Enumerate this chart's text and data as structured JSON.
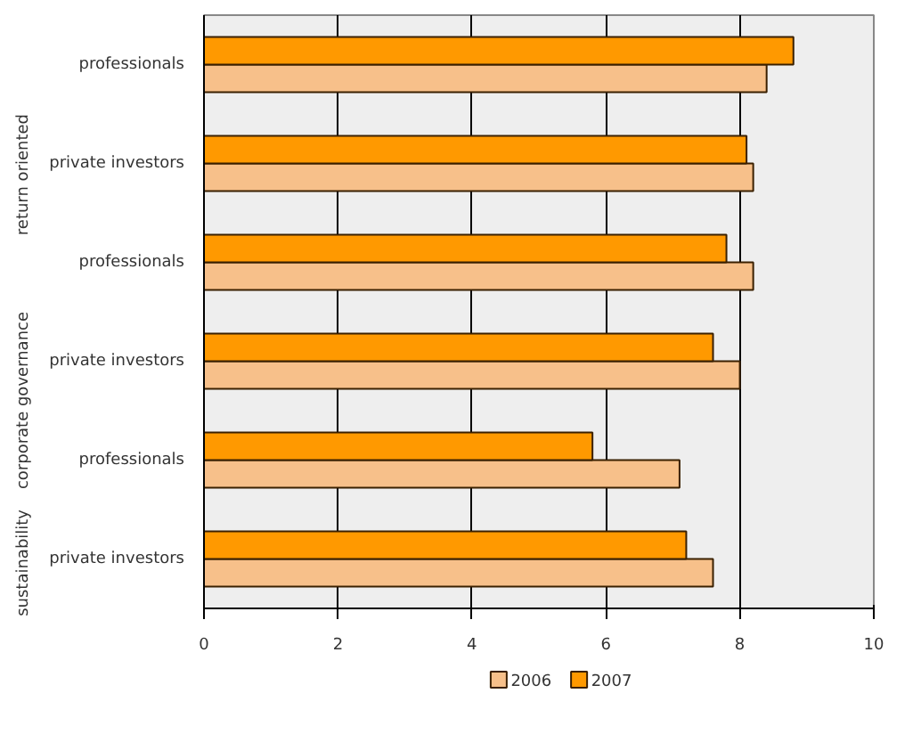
{
  "chart_data": {
    "type": "bar",
    "orientation": "horizontal",
    "categories": [
      "professionals",
      "private investors",
      "professionals",
      "private investors",
      "professionals",
      "private investors"
    ],
    "series": [
      {
        "name": "2006",
        "color": "#f7c08a",
        "values": [
          8.4,
          8.2,
          8.2,
          8.0,
          7.1,
          7.6
        ]
      },
      {
        "name": "2007",
        "color": "#ff9900",
        "values": [
          8.8,
          8.1,
          7.8,
          7.6,
          5.8,
          7.2
        ]
      }
    ],
    "annotations": [
      "return oriented",
      "corporate governance",
      "sustainability"
    ],
    "xlim": [
      0,
      10
    ],
    "xticks": [
      0,
      2,
      4,
      6,
      8,
      10
    ],
    "grid": "x",
    "legend": "bottom"
  }
}
